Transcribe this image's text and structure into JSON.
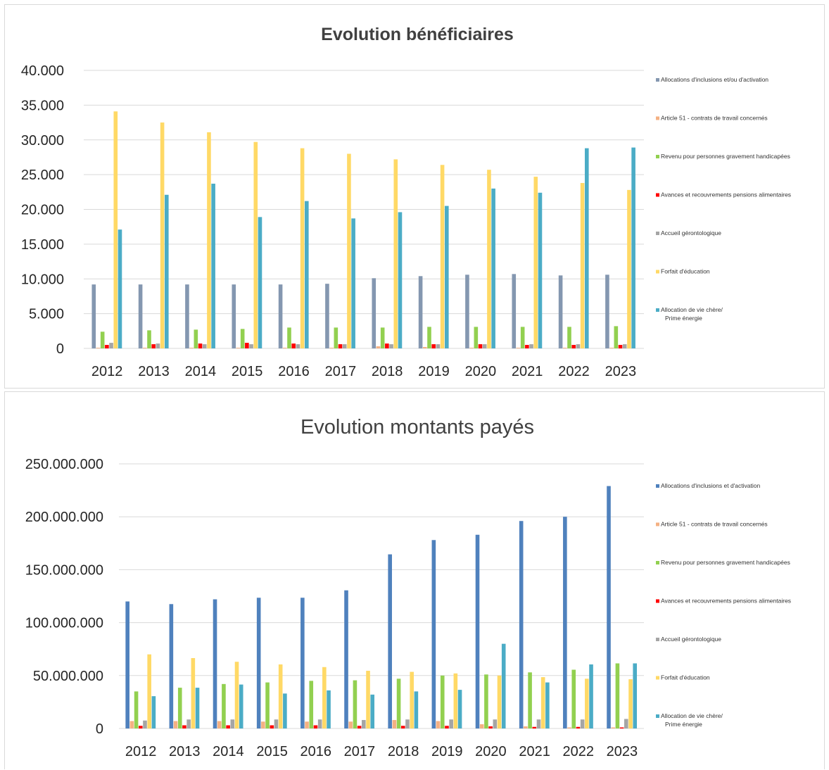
{
  "chart_data": [
    {
      "type": "bar",
      "title": "Evolution bénéficiaires",
      "categories": [
        "2012",
        "2013",
        "2014",
        "2015",
        "2016",
        "2017",
        "2018",
        "2019",
        "2020",
        "2021",
        "2022",
        "2023"
      ],
      "ylim": [
        0,
        40000
      ],
      "yticks": [
        0,
        5000,
        10000,
        15000,
        20000,
        25000,
        30000,
        35000,
        40000
      ],
      "ytick_labels": [
        "0",
        "5.000",
        "10.000",
        "15.000",
        "20.000",
        "25.000",
        "30.000",
        "35.000",
        "40.000"
      ],
      "grid": true,
      "legend_position": "right",
      "series": [
        {
          "name": "Allocations d'inclusions et/ou d'activation",
          "name_line2": "",
          "color": "#8497b0",
          "values": [
            9200,
            9200,
            9200,
            9200,
            9200,
            9300,
            10100,
            10400,
            10600,
            10700,
            10500,
            10600
          ]
        },
        {
          "name": "Article 51 - contrats de travail concernés",
          "name_line2": "",
          "color": "#f4b183",
          "values": [
            100,
            100,
            100,
            100,
            100,
            100,
            300,
            200,
            100,
            100,
            100,
            100
          ]
        },
        {
          "name": "Revenu pour personnes gravement handicapées",
          "name_line2": "",
          "color": "#92d050",
          "values": [
            2400,
            2600,
            2700,
            2800,
            3000,
            3000,
            3000,
            3100,
            3100,
            3100,
            3100,
            3200
          ]
        },
        {
          "name": "Avances et recouvrements pensions alimentaires",
          "name_line2": "",
          "color": "#ff0000",
          "values": [
            500,
            600,
            700,
            800,
            700,
            600,
            700,
            600,
            600,
            500,
            500,
            500
          ]
        },
        {
          "name": "Accueil gérontologique",
          "name_line2": "",
          "color": "#a5a5a5",
          "values": [
            800,
            700,
            600,
            600,
            600,
            600,
            600,
            600,
            600,
            600,
            600,
            600
          ]
        },
        {
          "name": "Forfait d'éducation",
          "name_line2": "",
          "color": "#ffd966",
          "values": [
            34100,
            32500,
            31100,
            29700,
            28800,
            28000,
            27200,
            26400,
            25700,
            24700,
            23800,
            22800
          ]
        },
        {
          "name": "Allocation de vie chère/",
          "name_line2": "Prime énergie",
          "color": "#4bacc6",
          "values": [
            17100,
            22100,
            23700,
            18900,
            21200,
            18700,
            19600,
            20500,
            23000,
            22400,
            28800,
            28900
          ]
        }
      ]
    },
    {
      "type": "bar",
      "title": "Evolution montants payés",
      "categories": [
        "2012",
        "2013",
        "2014",
        "2015",
        "2016",
        "2017",
        "2018",
        "2019",
        "2020",
        "2021",
        "2022",
        "2023"
      ],
      "ylim": [
        0,
        250000000
      ],
      "yticks": [
        0,
        50000000,
        100000000,
        150000000,
        200000000,
        250000000
      ],
      "ytick_labels": [
        "0",
        "50.000.000",
        "100.000.000",
        "150.000.000",
        "200.000.000",
        "250.000.000"
      ],
      "grid": true,
      "legend_position": "right",
      "series": [
        {
          "name": "Allocations d'inclusions et d'activation",
          "name_line2": "",
          "color": "#4f81bd",
          "values": [
            120000000,
            117500000,
            122000000,
            123500000,
            123500000,
            130500000,
            164500000,
            178000000,
            183000000,
            196000000,
            200000000,
            229000000
          ]
        },
        {
          "name": "Article 51 - contrats de travail concernés",
          "name_line2": "",
          "color": "#f4b183",
          "values": [
            7000000,
            7000000,
            7000000,
            6500000,
            6500000,
            6500000,
            8000000,
            7000000,
            4000000,
            2000000,
            1000000,
            1000000
          ]
        },
        {
          "name": "Revenu pour personnes gravement handicapées",
          "name_line2": "",
          "color": "#92d050",
          "values": [
            35000000,
            38500000,
            42000000,
            43500000,
            45000000,
            45500000,
            47000000,
            50000000,
            51000000,
            53000000,
            55500000,
            61500000
          ]
        },
        {
          "name": "Avances et recouvrements pensions alimentaires",
          "name_line2": "",
          "color": "#ff0000",
          "values": [
            2500000,
            3000000,
            3000000,
            3000000,
            3000000,
            2500000,
            2500000,
            2500000,
            2000000,
            1500000,
            1500000,
            1000000
          ]
        },
        {
          "name": "Accueil gérontologique",
          "name_line2": "",
          "color": "#a5a5a5",
          "values": [
            7500000,
            8500000,
            8500000,
            8500000,
            8500000,
            8000000,
            8500000,
            8500000,
            8500000,
            8500000,
            8500000,
            9000000
          ]
        },
        {
          "name": "Forfait d'éducation",
          "name_line2": "",
          "color": "#ffd966",
          "values": [
            70000000,
            66500000,
            63000000,
            60500000,
            58000000,
            54500000,
            53500000,
            52000000,
            50000000,
            48500000,
            47000000,
            46500000
          ]
        },
        {
          "name": "Allocation de vie chère/",
          "name_line2": "Prime énergie",
          "color": "#4bacc6",
          "values": [
            30500000,
            38500000,
            41500000,
            33000000,
            36000000,
            32000000,
            35000000,
            36500000,
            80000000,
            43500000,
            60500000,
            61500000
          ]
        }
      ]
    }
  ]
}
